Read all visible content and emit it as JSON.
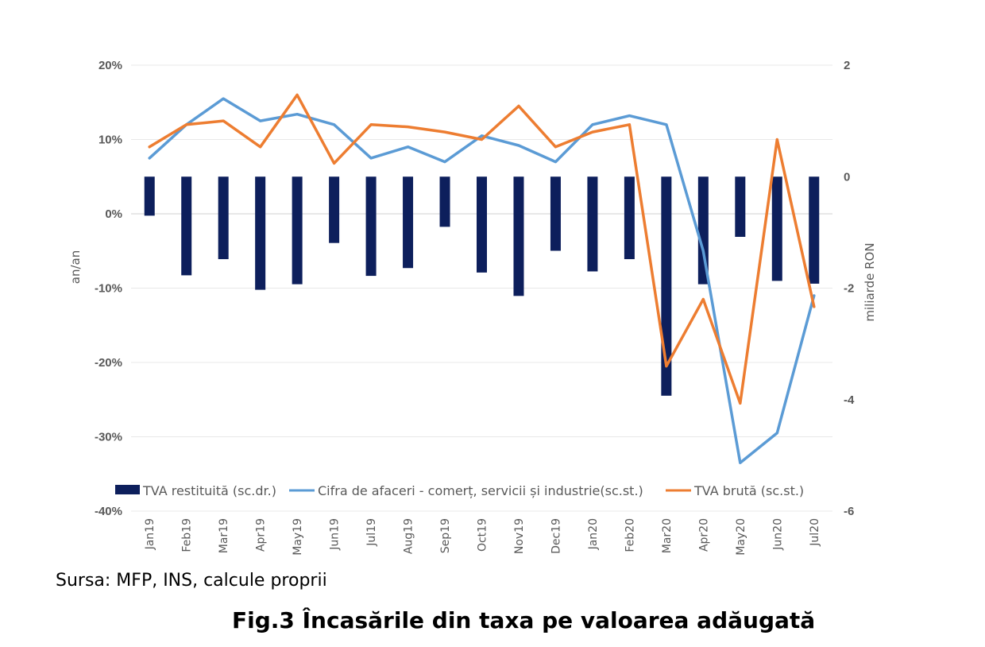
{
  "source_note": "Sursa: MFP, INS, calcule proprii",
  "figure_title": "Fig.3 Încasările din taxa pe valoarea adăugată",
  "colors": {
    "bars": "#0d1f5c",
    "blue_line": "#5b9bd5",
    "orange_line": "#ed7d31",
    "grid": "#e8e8e8",
    "text": "#595959"
  },
  "chart_data": {
    "type": "bar",
    "categories": [
      "Jan19",
      "Feb19",
      "Mar19",
      "Apr19",
      "May19",
      "Jun19",
      "Jul19",
      "Aug19",
      "Sep19",
      "Oct19",
      "Nov19",
      "Dec19",
      "Jan20",
      "Feb20",
      "Mar20",
      "Apr20",
      "May20",
      "Jun20",
      "Jul20"
    ],
    "y_left": {
      "label": "an/an",
      "min": -40,
      "max": 20,
      "step": 10,
      "ticks": [
        "20%",
        "10%",
        "0%",
        "-10%",
        "-20%",
        "-30%",
        "-40%"
      ]
    },
    "y_right": {
      "label": "miliarde RON",
      "min": -6,
      "max": 2,
      "ticks": [
        "2",
        "0",
        "-2",
        "-4",
        "-6"
      ]
    },
    "series": [
      {
        "name": "TVA restituită (sc.dr.)",
        "kind": "bar",
        "axis": "right",
        "values": [
          -0.7,
          -1.77,
          -1.48,
          -2.03,
          -1.93,
          -1.19,
          -1.78,
          -1.64,
          -0.9,
          -1.72,
          -2.14,
          -1.33,
          -1.7,
          -1.48,
          -3.93,
          -1.93,
          -1.08,
          -1.87,
          -1.92
        ]
      },
      {
        "name": "Cifra de afaceri - comerț, servicii și industrie(sc.st.)",
        "kind": "line",
        "axis": "left",
        "values": [
          7.5,
          12,
          15.5,
          12.5,
          13.4,
          12,
          7.5,
          9,
          7,
          10.5,
          9.2,
          7,
          12,
          13.2,
          12,
          -5,
          -33.5,
          -29.5,
          -11
        ]
      },
      {
        "name": "TVA brută (sc.st.)",
        "kind": "line",
        "axis": "left",
        "values": [
          9,
          12,
          12.5,
          9,
          16,
          6.8,
          12,
          11.7,
          11,
          10,
          14.5,
          9,
          11,
          12,
          -20.5,
          -11.5,
          -25.5,
          10,
          -12.5
        ]
      }
    ]
  }
}
